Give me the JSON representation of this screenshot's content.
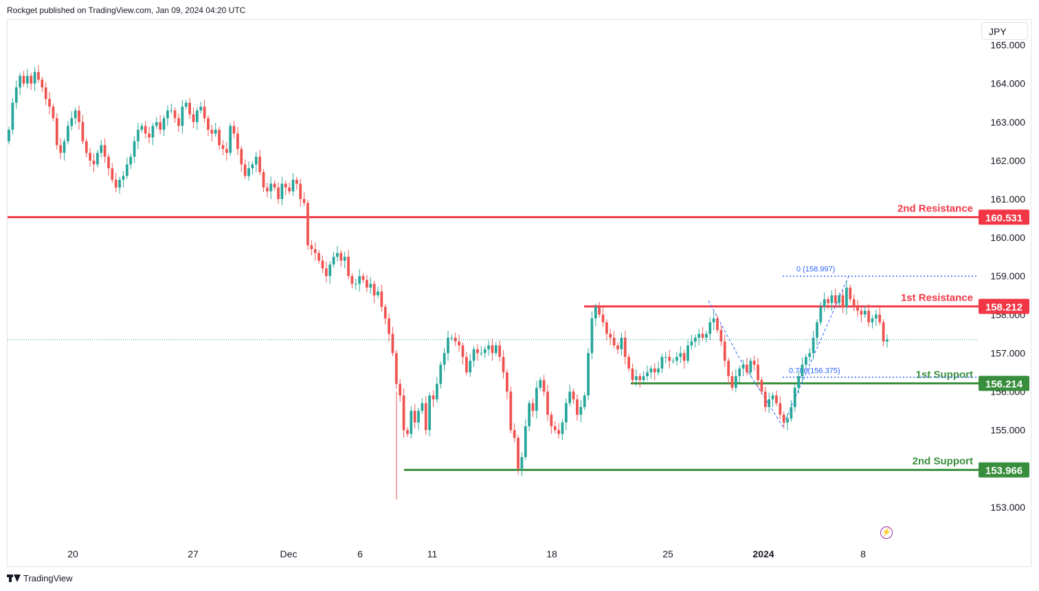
{
  "header": {
    "published_text": "Rockget published on TradingView.com, Jan 09, 2024 04:20 UTC"
  },
  "currency": "JPY",
  "footer": {
    "brand": "TradingView"
  },
  "icons": {
    "alert": "lightning-icon",
    "logo": "tradingview-logo-icon"
  },
  "colors": {
    "up": "#26a69a",
    "down": "#ef5350",
    "resistance": "#f23645",
    "support": "#388e3c",
    "fib": "#2962ff"
  },
  "chart_data": {
    "type": "candlestick",
    "title": "",
    "ylim": [
      152.2,
      165.1
    ],
    "y_ticks": [
      "165.000",
      "164.000",
      "163.000",
      "162.000",
      "161.000",
      "160.000",
      "159.000",
      "158.000",
      "157.000",
      "156.000",
      "155.000",
      "153.000"
    ],
    "x_ticks": [
      "20",
      "27",
      "Dec",
      "6",
      "11",
      "18",
      "25",
      "2024",
      "8"
    ],
    "levels": [
      {
        "label": "2nd Resistance",
        "value": "160.531",
        "price": 160.531,
        "kind": "resistance"
      },
      {
        "label": "1st Resistance",
        "value": "158.212",
        "price": 158.212,
        "kind": "resistance"
      },
      {
        "label": "1st Support",
        "value": "156.214",
        "price": 156.214,
        "kind": "support"
      },
      {
        "label": "2nd Support",
        "value": "153.966",
        "price": 153.966,
        "kind": "support"
      }
    ],
    "fib": {
      "level_0_label": "0 (158.997)",
      "level_0": 158.997,
      "level_786_label": "0.786(156.375)",
      "level_786": 156.375
    },
    "current_price": 157.35,
    "closes": [
      162.8,
      163.5,
      163.9,
      164.2,
      164.0,
      164.2,
      164.0,
      164.3,
      164.1,
      163.9,
      163.6,
      163.4,
      163.1,
      162.4,
      162.2,
      162.5,
      162.9,
      163.1,
      163.3,
      163.0,
      162.5,
      162.2,
      162.0,
      161.9,
      162.2,
      162.4,
      162.1,
      161.8,
      161.5,
      161.3,
      161.5,
      161.6,
      161.9,
      162.1,
      162.5,
      162.8,
      162.9,
      162.7,
      162.6,
      162.9,
      163.0,
      162.8,
      163.1,
      163.3,
      163.3,
      163.1,
      162.9,
      163.4,
      163.5,
      163.2,
      163.0,
      163.3,
      163.4,
      163.1,
      162.8,
      162.7,
      162.8,
      162.4,
      162.3,
      162.2,
      162.9,
      162.7,
      162.3,
      161.9,
      161.6,
      161.8,
      161.9,
      162.1,
      161.7,
      161.3,
      161.2,
      161.4,
      161.3,
      161.0,
      161.4,
      161.3,
      161.2,
      161.5,
      161.4,
      161.0,
      160.9,
      159.8,
      159.7,
      159.6,
      159.4,
      159.2,
      159.0,
      159.3,
      159.5,
      159.6,
      159.4,
      159.5,
      159.0,
      158.8,
      158.8,
      159.0,
      158.9,
      158.7,
      158.8,
      158.5,
      158.6,
      158.2,
      157.9,
      157.5,
      157.0,
      156.2,
      155.9,
      155.0,
      154.9,
      155.5,
      155.2,
      155.5,
      155.7,
      155.0,
      155.9,
      155.8,
      156.2,
      156.7,
      157.0,
      157.4,
      157.4,
      157.3,
      157.2,
      156.9,
      156.5,
      156.8,
      157.1,
      157.0,
      157.0,
      157.1,
      157.2,
      157.0,
      157.2,
      156.9,
      156.5,
      156.0,
      155.0,
      154.8,
      154.0,
      154.3,
      155.1,
      155.7,
      155.5,
      156.1,
      156.3,
      156.0,
      155.4,
      155.1,
      155.0,
      154.9,
      155.2,
      155.7,
      156.0,
      155.8,
      155.4,
      155.6,
      155.9,
      157.0,
      157.9,
      158.2,
      158.0,
      157.8,
      157.5,
      157.4,
      157.2,
      157.1,
      157.4,
      156.9,
      156.6,
      156.3,
      156.4,
      156.3,
      156.4,
      156.5,
      156.6,
      156.5,
      156.6,
      156.9,
      156.9,
      156.8,
      156.8,
      156.9,
      157.0,
      156.8,
      157.2,
      157.3,
      157.4,
      157.5,
      157.4,
      157.5,
      157.8,
      157.9,
      157.6,
      157.3,
      156.8,
      156.4,
      156.1,
      156.4,
      156.6,
      156.7,
      156.5,
      156.8,
      156.7,
      156.3,
      156.0,
      155.6,
      155.8,
      155.9,
      155.7,
      155.4,
      155.2,
      155.3,
      155.6,
      156.1,
      156.4,
      156.7,
      156.9,
      157.0,
      157.4,
      157.8,
      158.2,
      158.4,
      158.3,
      158.5,
      158.3,
      158.5,
      158.2,
      158.7,
      158.4,
      158.2,
      158.1,
      158.0,
      158.1,
      157.8,
      157.9,
      158.0,
      157.8,
      157.3,
      157.35
    ]
  }
}
